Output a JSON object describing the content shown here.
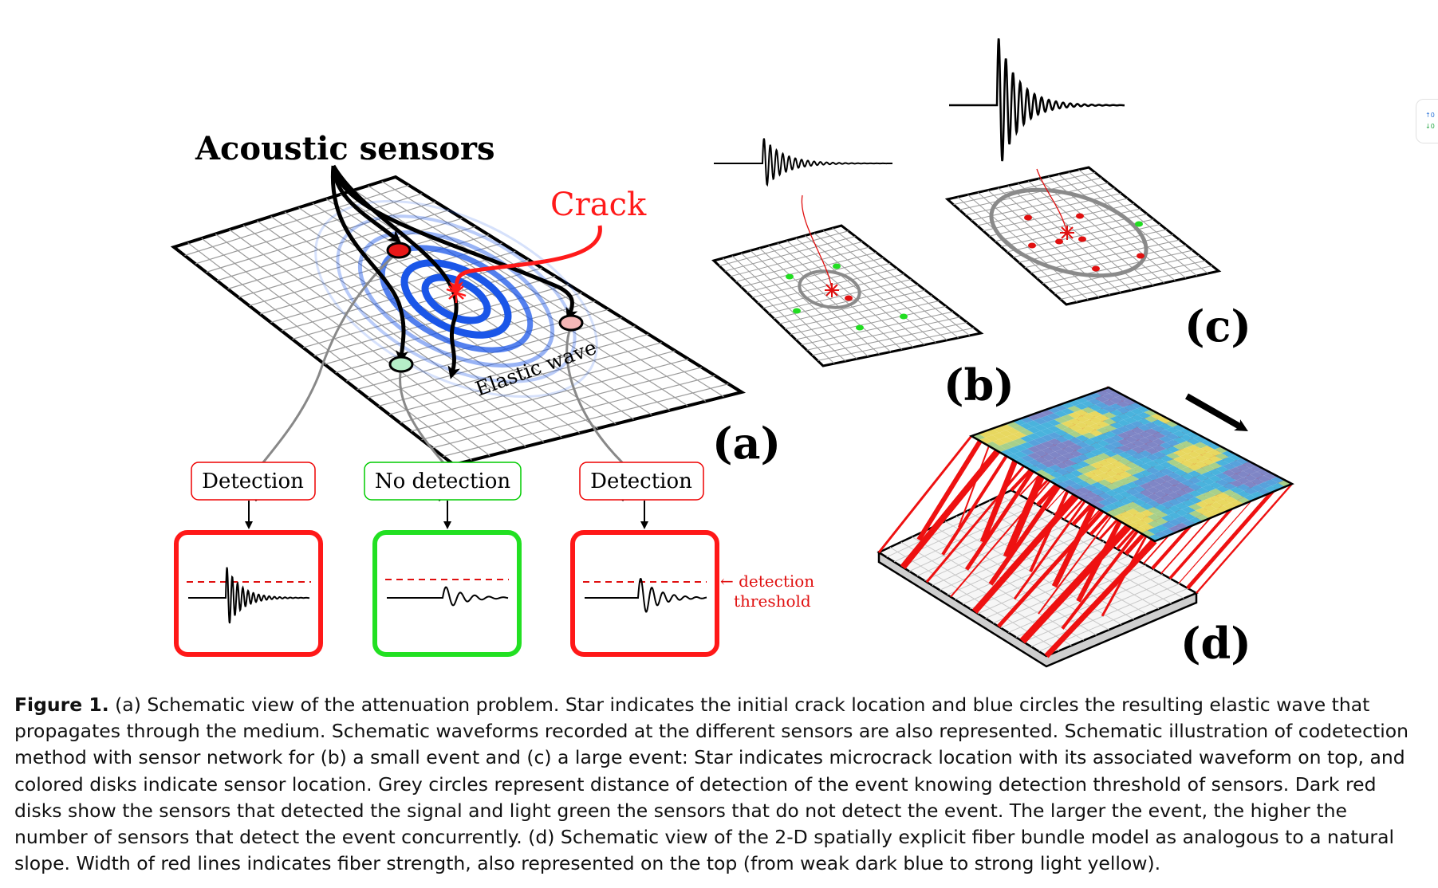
{
  "figure": {
    "panel_a": {
      "sensors_label": "Acoustic sensors",
      "crack_label": "Crack",
      "wave_label": "Elastic wave",
      "panel_label": "(a)",
      "boxes": [
        {
          "label": "Detection",
          "status": "detected",
          "color": "#ff0000"
        },
        {
          "label": "No detection",
          "status": "not-detected",
          "color": "#00e000"
        },
        {
          "label": "Detection",
          "status": "detected",
          "color": "#ff0000"
        }
      ],
      "threshold_label_line1": "← detection",
      "threshold_label_line2": "threshold"
    },
    "panel_b": {
      "panel_label": "(b)"
    },
    "panel_c": {
      "panel_label": "(c)"
    },
    "panel_d": {
      "panel_label": "(d)"
    },
    "colors": {
      "detected_sensor": "#ff0000",
      "undetected_sensor": "#22dd22",
      "wave": "#1a56e8",
      "fiber": "#ee1111"
    }
  },
  "caption": {
    "heading": "Figure 1.",
    "text": "(a) Schematic view of the attenuation problem. Star indicates the initial crack location and blue circles the resulting elastic wave that propagates through the medium. Schematic waveforms recorded at the different sensors are also represented. Schematic illustration of codetection method with sensor network for (b) a small event and (c) a large event: Star indicates microcrack location with its associated waveform on top, and colored disks indicate sensor location. Grey circles represent distance of detection of the event knowing detection threshold of sensors. Dark red disks show the sensors that detected the signal and light green the sensors that do not detect the event. The larger the event, the higher the number of sensors that detect the event concurrently. (d) Schematic view of the 2-D spatially explicit fiber bundle model as analogous to a natural slope. Width of red lines indicates fiber strength, also represented on the top (from weak dark blue to strong light yellow)."
  },
  "side_widget": {
    "up": "↑0",
    "down": "↓0"
  }
}
